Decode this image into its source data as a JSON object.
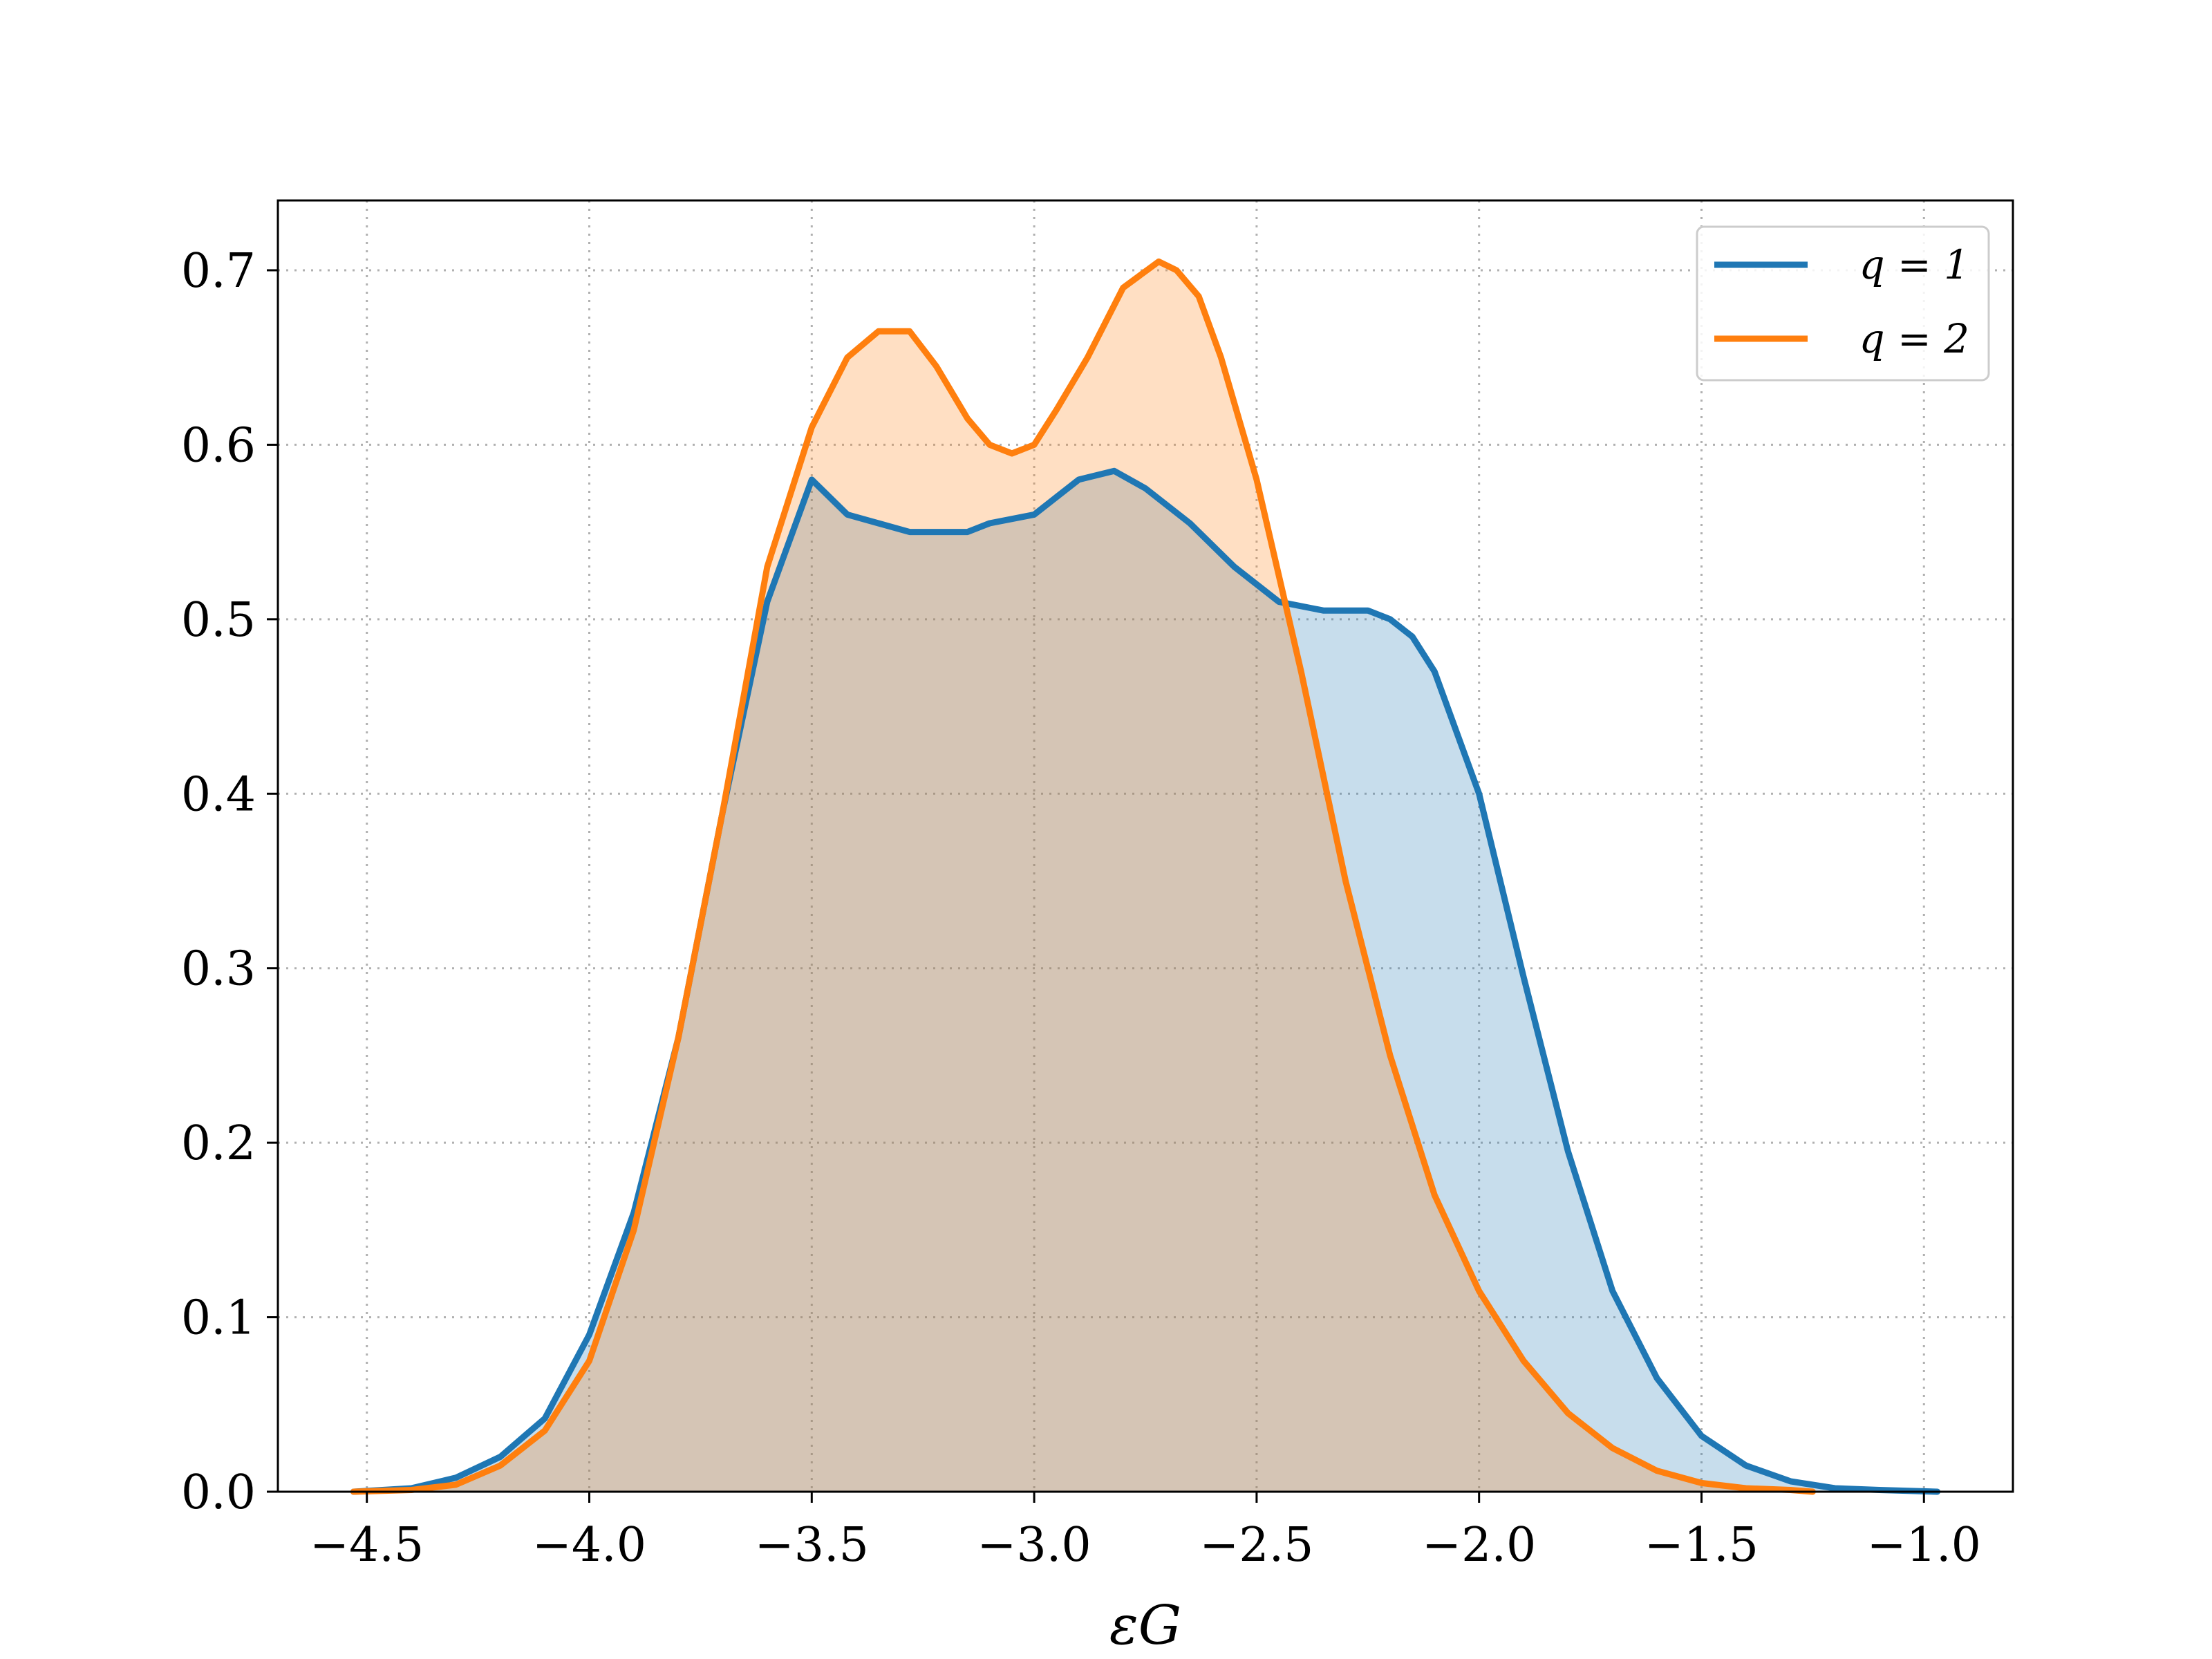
{
  "chart_data": {
    "type": "area",
    "title": "",
    "xlabel": "εG",
    "ylabel": "",
    "xlim": [
      -4.7,
      -0.8
    ],
    "ylim": [
      0,
      0.74
    ],
    "xticks": [
      -4.5,
      -4.0,
      -3.5,
      -3.0,
      -2.5,
      -2.0,
      -1.5,
      -1.0
    ],
    "xtick_labels": [
      "−4.5",
      "−4.0",
      "−3.5",
      "−3.0",
      "−2.5",
      "−2.0",
      "−1.5",
      "−1.0"
    ],
    "yticks": [
      0.0,
      0.1,
      0.2,
      0.3,
      0.4,
      0.5,
      0.6,
      0.7
    ],
    "ytick_labels": [
      "0.0",
      "0.1",
      "0.2",
      "0.3",
      "0.4",
      "0.5",
      "0.6",
      "0.7"
    ],
    "grid": true,
    "legend_position": "top-right",
    "series": [
      {
        "name": "q = 1",
        "color": "#1f77b4",
        "fill": "#c6dcee",
        "x": [
          -4.53,
          -4.4,
          -4.3,
          -4.2,
          -4.1,
          -4.0,
          -3.9,
          -3.8,
          -3.7,
          -3.6,
          -3.5,
          -3.42,
          -3.35,
          -3.28,
          -3.22,
          -3.15,
          -3.1,
          -3.0,
          -2.9,
          -2.82,
          -2.75,
          -2.65,
          -2.55,
          -2.45,
          -2.35,
          -2.25,
          -2.2,
          -2.15,
          -2.1,
          -2.05,
          -2.0,
          -1.9,
          -1.8,
          -1.7,
          -1.6,
          -1.5,
          -1.4,
          -1.3,
          -1.2,
          -1.1,
          -0.97
        ],
        "y": [
          0.0,
          0.002,
          0.008,
          0.02,
          0.042,
          0.09,
          0.16,
          0.26,
          0.39,
          0.51,
          0.58,
          0.56,
          0.555,
          0.55,
          0.55,
          0.55,
          0.555,
          0.56,
          0.58,
          0.585,
          0.575,
          0.555,
          0.53,
          0.51,
          0.505,
          0.505,
          0.5,
          0.49,
          0.47,
          0.435,
          0.4,
          0.295,
          0.195,
          0.115,
          0.065,
          0.032,
          0.015,
          0.006,
          0.002,
          0.001,
          0.0
        ]
      },
      {
        "name": "q = 2",
        "color": "#ff7f0e",
        "fill": "#fedcbf",
        "x": [
          -4.53,
          -4.4,
          -4.3,
          -4.2,
          -4.1,
          -4.0,
          -3.9,
          -3.8,
          -3.7,
          -3.6,
          -3.5,
          -3.42,
          -3.35,
          -3.28,
          -3.22,
          -3.15,
          -3.1,
          -3.05,
          -3.0,
          -2.95,
          -2.88,
          -2.8,
          -2.72,
          -2.68,
          -2.63,
          -2.58,
          -2.5,
          -2.4,
          -2.3,
          -2.2,
          -2.1,
          -2.0,
          -1.9,
          -1.8,
          -1.7,
          -1.6,
          -1.5,
          -1.4,
          -1.3,
          -1.25
        ],
        "y": [
          0.0,
          0.001,
          0.004,
          0.015,
          0.035,
          0.075,
          0.15,
          0.26,
          0.39,
          0.53,
          0.61,
          0.65,
          0.665,
          0.665,
          0.645,
          0.615,
          0.6,
          0.595,
          0.6,
          0.62,
          0.65,
          0.69,
          0.705,
          0.7,
          0.685,
          0.65,
          0.58,
          0.47,
          0.35,
          0.25,
          0.17,
          0.115,
          0.075,
          0.045,
          0.025,
          0.012,
          0.005,
          0.002,
          0.001,
          0.0
        ]
      }
    ]
  }
}
